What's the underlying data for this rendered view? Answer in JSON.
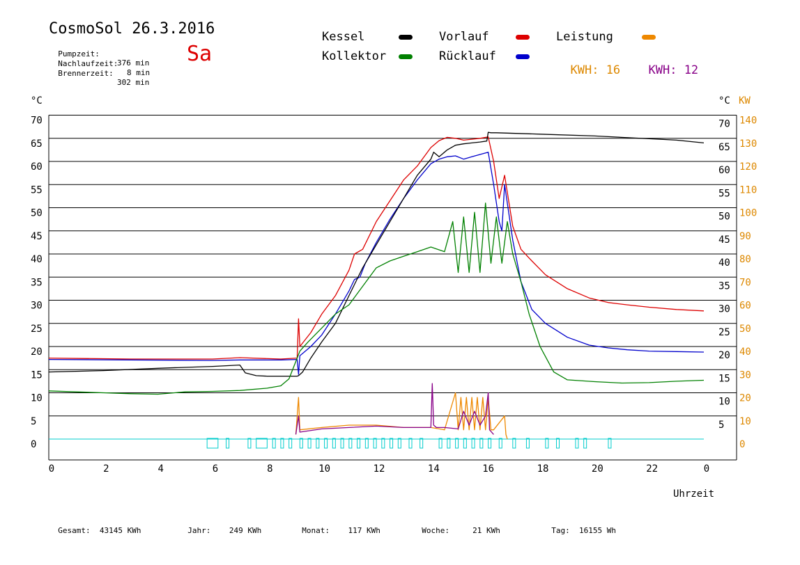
{
  "header": {
    "title": "CosmoSol 26.3.2016",
    "day": "Sa",
    "pumpzeit_label": "Pumpzeit:",
    "pumpzeit_value": "376 min",
    "nachlauf_label": "Nachlaufzeit:",
    "nachlauf_value": "8 min",
    "brenner_label": "Brennerzeit:",
    "brenner_value": "302 min"
  },
  "legend": {
    "kessel": "Kessel",
    "kollektor": "Kollektor",
    "vorlauf": "Vorlauf",
    "ruecklauf": "Rücklauf",
    "leistung": "Leistung",
    "kwh1_label": "KWH:",
    "kwh1_value": "16",
    "kwh2_label": "KWH:",
    "kwh2_value": "12"
  },
  "colors": {
    "kessel": "#000000",
    "kollektor": "#008000",
    "vorlauf": "#dd0000",
    "ruecklauf": "#0000cc",
    "leistung": "#ee8800",
    "leistung2": "#880088",
    "pump": "#00cccc",
    "kw_axis": "#dd8800"
  },
  "footer": {
    "gesamt_label": "Gesamt:",
    "gesamt_value": "43145 KWh",
    "jahr_label": "Jahr:",
    "jahr_value": "249 KWh",
    "monat_label": "Monat:",
    "monat_value": "117 KWh",
    "woche_label": "Woche:",
    "woche_value": "21 KWh",
    "tag_label": "Tag:",
    "tag_value": "16155 Wh"
  },
  "chart_data": {
    "type": "line",
    "xlabel": "Uhrzeit",
    "ylabel_left": "°C",
    "ylabel_right": "°C",
    "ylabel_right2": "KW",
    "x_ticks": [
      "0",
      "2",
      "4",
      "6",
      "8",
      "10",
      "12",
      "14",
      "16",
      "18",
      "20",
      "22",
      "0"
    ],
    "y_ticks": [
      0,
      5,
      10,
      15,
      20,
      25,
      30,
      35,
      40,
      45,
      50,
      55,
      60,
      65,
      70
    ],
    "kw_ticks": [
      0,
      10,
      20,
      30,
      40,
      50,
      60,
      70,
      80,
      90,
      100,
      110,
      120,
      130,
      140
    ],
    "xlim": [
      0,
      24
    ],
    "ylim": [
      0,
      70
    ],
    "grid": true,
    "series": [
      {
        "name": "Vorlauf",
        "color": "#dd0000",
        "x": [
          0,
          3,
          6,
          7,
          8.5,
          9.1,
          9.15,
          9.2,
          9.6,
          10,
          10.5,
          11,
          11.2,
          11.5,
          12,
          12.5,
          13,
          13.5,
          14,
          14.3,
          14.6,
          14.9,
          15.2,
          15.5,
          15.8,
          16.1,
          16.3,
          16.5,
          16.7,
          17,
          17.3,
          17.7,
          18.2,
          19,
          19.8,
          20.5,
          21.2,
          22,
          23,
          24
        ],
        "y": [
          17.5,
          17.3,
          17.3,
          17.6,
          17.3,
          17.5,
          26,
          20,
          23,
          27,
          31,
          36.5,
          40,
          41,
          47,
          51.5,
          56,
          59,
          63,
          64.5,
          65.2,
          65.0,
          64.6,
          64.8,
          65.0,
          65.3,
          60,
          52,
          57,
          46,
          41,
          38.5,
          35.5,
          32.5,
          30.5,
          29.5,
          29.0,
          28.5,
          28.0,
          27.7
        ]
      },
      {
        "name": "Rücklauf",
        "color": "#0000cc",
        "x": [
          0,
          3,
          6,
          7,
          8.5,
          9.1,
          9.15,
          9.2,
          9.6,
          10,
          10.5,
          11,
          11.2,
          11.4,
          11.6,
          12,
          12.5,
          13,
          13.5,
          14,
          14.3,
          14.6,
          14.9,
          15.2,
          15.5,
          15.8,
          16.1,
          16.3,
          16.5,
          16.6,
          16.7,
          17,
          17.3,
          17.7,
          18.2,
          19,
          19.8,
          20.5,
          21.2,
          22,
          23,
          24
        ],
        "y": [
          17.2,
          17.1,
          17.0,
          17.1,
          17.1,
          17.2,
          14,
          18,
          20,
          22.5,
          27,
          32,
          34.5,
          35,
          38,
          42.5,
          47.5,
          52,
          56,
          59.5,
          60.5,
          61.0,
          61.2,
          60.5,
          61.0,
          61.5,
          62,
          55,
          47,
          45,
          55,
          43,
          34,
          28,
          25,
          22,
          20.3,
          19.7,
          19.3,
          19.0,
          18.9,
          18.8
        ]
      },
      {
        "name": "Kessel",
        "color": "#000000",
        "x": [
          0,
          2,
          4,
          6,
          7,
          7.2,
          7.6,
          8,
          8.5,
          9.1,
          9.15,
          9.3,
          9.6,
          10,
          10.5,
          11,
          11.5,
          12,
          12.5,
          13,
          13.5,
          14,
          14.1,
          14.3,
          14.6,
          14.9,
          15.2,
          15.5,
          15.8,
          16.05,
          16.1,
          16.2,
          16.4,
          18,
          20,
          22,
          23,
          24
        ],
        "y": [
          14.5,
          14.8,
          15.3,
          15.7,
          16.0,
          14.3,
          13.7,
          13.6,
          13.6,
          13.6,
          13.7,
          14.5,
          17.5,
          21,
          25,
          31,
          37,
          42,
          47,
          52,
          57,
          60.5,
          62,
          61,
          62.5,
          63.5,
          63.8,
          64.0,
          64.2,
          64.4,
          66.3,
          66.2,
          66.2,
          65.9,
          65.5,
          64.9,
          64.6,
          64.0
        ]
      },
      {
        "name": "Kollektor",
        "color": "#008000",
        "x": [
          0,
          1,
          2,
          3,
          4,
          5,
          6,
          7,
          8,
          8.5,
          8.8,
          9.0,
          9.2,
          9.5,
          10,
          10.5,
          11,
          11.5,
          12,
          12.5,
          13,
          13.5,
          14,
          14.5,
          14.8,
          15.0,
          15.2,
          15.4,
          15.6,
          15.8,
          16.0,
          16.2,
          16.4,
          16.6,
          16.8,
          17,
          17.3,
          17.6,
          18,
          18.5,
          19,
          20,
          21,
          22,
          23,
          24
        ],
        "y": [
          10.4,
          10.2,
          10.0,
          9.8,
          9.7,
          10.2,
          10.3,
          10.5,
          11.0,
          11.5,
          13,
          16,
          19,
          21,
          24,
          27,
          29,
          33,
          37,
          38.5,
          39.5,
          40.5,
          41.5,
          40.5,
          47,
          36,
          48,
          36,
          49,
          36,
          51,
          38,
          48,
          38,
          47,
          40,
          34,
          27,
          20,
          14.5,
          12.8,
          12.4,
          12.1,
          12.2,
          12.5,
          12.7
        ]
      }
    ],
    "power": [
      {
        "name": "Leistung",
        "color": "#ee8800",
        "x": [
          9.05,
          9.15,
          9.2,
          10,
          11,
          12,
          13,
          14,
          14.5,
          14.9,
          15.0,
          15.1,
          15.2,
          15.3,
          15.4,
          15.5,
          15.6,
          15.7,
          15.8,
          15.9,
          16.0,
          16.1,
          16.2,
          16.3,
          16.7,
          16.75,
          16.8
        ],
        "y": [
          1,
          9,
          2,
          2.5,
          3,
          3,
          2.5,
          2.5,
          2,
          10,
          2,
          9,
          2,
          9,
          2,
          9,
          2,
          9,
          2,
          9,
          2,
          9,
          2,
          2,
          5,
          1,
          0
        ]
      },
      {
        "name": "Leistung2",
        "color": "#880088",
        "x": [
          9.05,
          9.15,
          9.2,
          10,
          11,
          12,
          13,
          14,
          14.05,
          14.1,
          14.2,
          14.5,
          15,
          15.2,
          15.4,
          15.6,
          15.8,
          16.0,
          16.1,
          16.15,
          16.3
        ],
        "y": [
          1,
          5,
          1.5,
          2.2,
          2.5,
          2.8,
          2.5,
          2.5,
          12,
          3,
          2.5,
          2.5,
          2.2,
          6,
          3,
          6,
          3,
          5,
          10,
          2,
          1
        ]
      }
    ],
    "pump_on": [
      [
        5.8,
        6.2
      ],
      [
        6.5,
        6.6
      ],
      [
        7.3,
        7.4
      ],
      [
        7.6,
        8.0
      ],
      [
        8.2,
        8.3
      ],
      [
        8.5,
        8.6
      ],
      [
        8.8,
        8.9
      ],
      [
        9.2,
        9.3
      ],
      [
        9.5,
        9.6
      ],
      [
        9.8,
        9.9
      ],
      [
        10.1,
        10.2
      ],
      [
        10.4,
        10.5
      ],
      [
        10.7,
        10.8
      ],
      [
        11.0,
        11.1
      ],
      [
        11.3,
        11.4
      ],
      [
        11.6,
        11.7
      ],
      [
        11.9,
        12.0
      ],
      [
        12.2,
        12.3
      ],
      [
        12.5,
        12.6
      ],
      [
        12.8,
        12.9
      ],
      [
        13.2,
        13.3
      ],
      [
        13.6,
        13.7
      ],
      [
        14.3,
        14.4
      ],
      [
        14.6,
        14.7
      ],
      [
        14.9,
        15.0
      ],
      [
        15.2,
        15.3
      ],
      [
        15.5,
        15.6
      ],
      [
        15.8,
        15.9
      ],
      [
        16.1,
        16.2
      ],
      [
        16.5,
        16.6
      ],
      [
        17.0,
        17.1
      ],
      [
        17.5,
        17.6
      ],
      [
        18.2,
        18.3
      ],
      [
        18.6,
        18.7
      ],
      [
        19.3,
        19.4
      ],
      [
        19.6,
        19.7
      ],
      [
        20.5,
        20.6
      ]
    ]
  }
}
